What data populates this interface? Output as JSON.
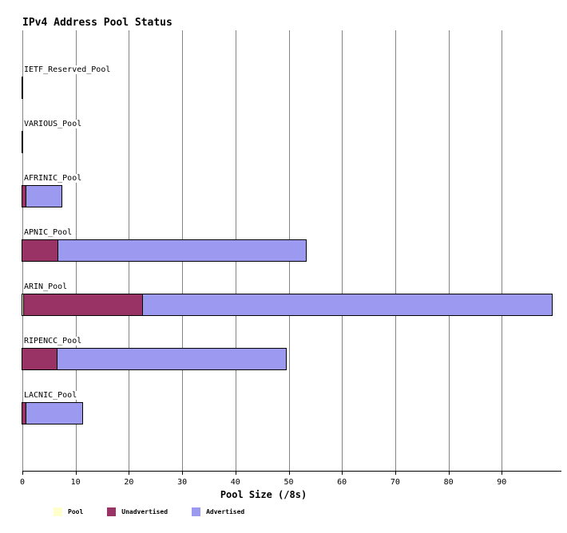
{
  "chart_data": {
    "type": "bar",
    "orientation": "horizontal",
    "stacked": true,
    "title": "IPv4 Address Pool Status",
    "xlabel": "Pool Size (/8s)",
    "xlim": [
      0,
      100
    ],
    "xticks": [
      0,
      10,
      20,
      30,
      40,
      50,
      60,
      70,
      80,
      90
    ],
    "grid": true,
    "gridline_color": "#848484",
    "legend_position": "bottom",
    "categories": [
      "IETF_Reserved_Pool",
      "VARIOUS_Pool",
      "AFRINIC_Pool",
      "APNIC_Pool",
      "ARIN_Pool",
      "RIPENCC_Pool",
      "LACNIC_Pool"
    ],
    "series": [
      {
        "name": "Pool",
        "color": "#ffffcc",
        "values": [
          0,
          0,
          0,
          0,
          0.3,
          0,
          0
        ]
      },
      {
        "name": "Unadvertised",
        "color": "#993366",
        "values": [
          0,
          0,
          0.8,
          6.7,
          22.4,
          6.6,
          0.8
        ]
      },
      {
        "name": "Advertised",
        "color": "#9b99f0",
        "values": [
          0,
          0,
          6.5,
          46.5,
          76.7,
          42.9,
          10.5
        ]
      }
    ]
  }
}
